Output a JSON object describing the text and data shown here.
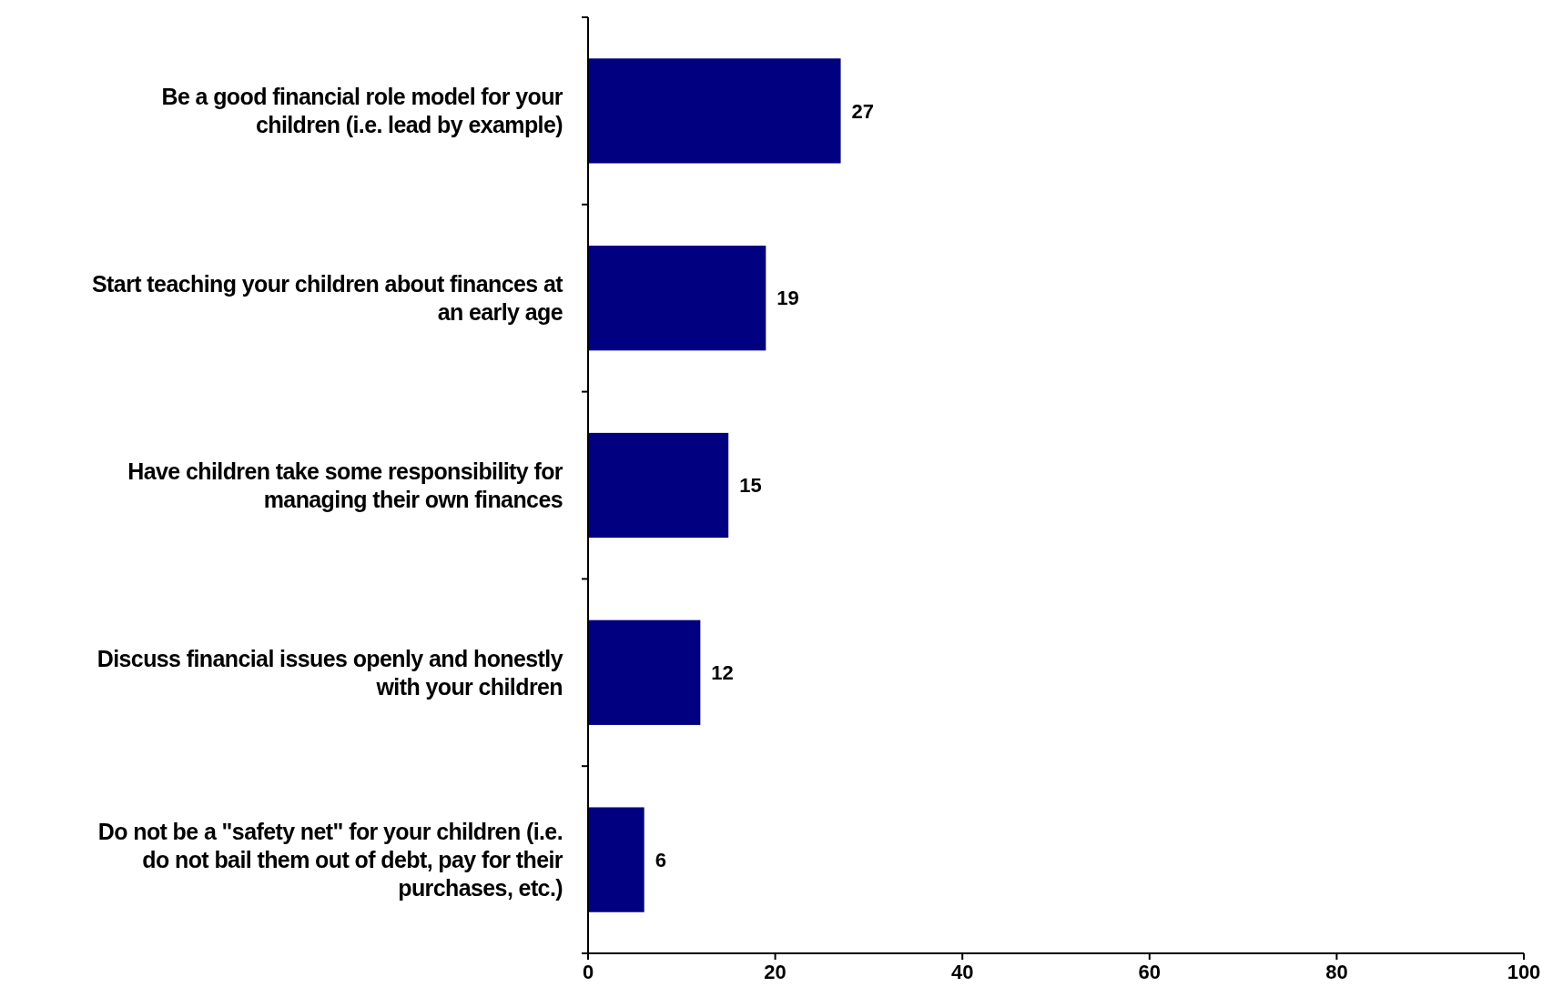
{
  "chart_data": {
    "type": "bar",
    "orientation": "horizontal",
    "categories": [
      "Be a good financial role model for your children (i.e. lead by example)",
      "Start teaching your children about finances at an early age",
      "Have children take some responsibility for managing their own finances",
      "Discuss financial issues openly and honestly with your children",
      "Do not be a \"safety net\" for your children (i.e. do not bail them out of debt, pay for their purchases, etc.)"
    ],
    "values": [
      27,
      19,
      15,
      12,
      6
    ],
    "color": "#000080",
    "xlim": [
      0,
      100
    ],
    "xticks": [
      0,
      20,
      40,
      60,
      80,
      100
    ],
    "data_labels": true,
    "grid": false
  }
}
